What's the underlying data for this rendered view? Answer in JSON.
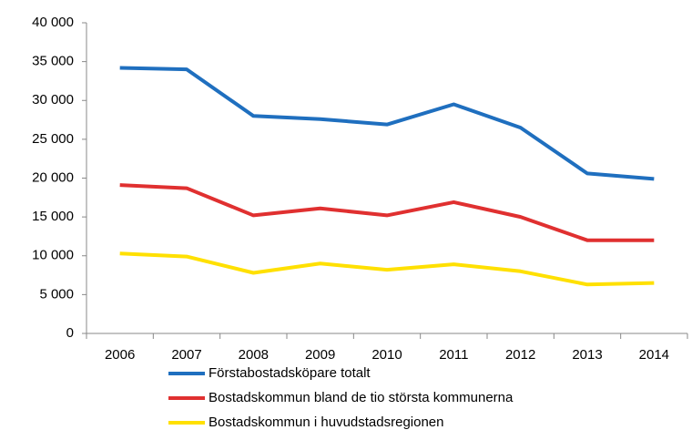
{
  "chart_data": {
    "type": "line",
    "categories": [
      "2006",
      "2007",
      "2008",
      "2009",
      "2010",
      "2011",
      "2012",
      "2013",
      "2014"
    ],
    "series": [
      {
        "name": "Förstabostadsköpare totalt",
        "color": "#1f6fbf",
        "values": [
          34200,
          34000,
          28000,
          27600,
          26900,
          29500,
          26500,
          20600,
          19900
        ]
      },
      {
        "name": "Bostadskommun bland de tio största kommunerna",
        "color": "#e03030",
        "values": [
          19100,
          18700,
          15200,
          16100,
          15200,
          16900,
          15000,
          12000,
          12000
        ]
      },
      {
        "name": "Bostadskommun i huvudstadsregionen",
        "color": "#ffe000",
        "values": [
          10300,
          9900,
          7800,
          9000,
          8200,
          8900,
          8000,
          6300,
          6500
        ]
      }
    ],
    "ylim": [
      0,
      40000
    ],
    "yticks": [
      0,
      {
        "value": 5000,
        "label": "5 000"
      },
      {
        "value": 10000,
        "label": "10 000"
      },
      {
        "value": 15000,
        "label": "15 000"
      },
      {
        "value": 20000,
        "label": "20 000"
      },
      {
        "value": 25000,
        "label": "25 000"
      },
      {
        "value": 30000,
        "label": "30 000"
      },
      {
        "value": 35000,
        "label": "35 000"
      },
      {
        "value": 40000,
        "label": "40 000"
      }
    ],
    "legend": "bottom"
  }
}
